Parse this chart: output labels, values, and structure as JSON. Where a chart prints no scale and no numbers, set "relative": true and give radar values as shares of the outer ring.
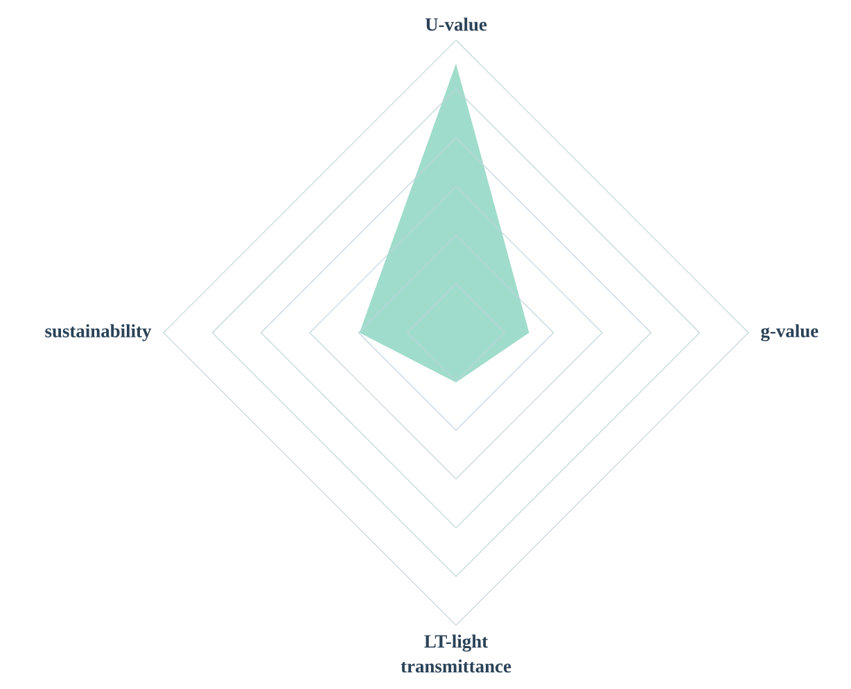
{
  "chart_data": {
    "type": "radar",
    "relative": true,
    "grid": true,
    "categories": [
      "U-value",
      "g-value",
      "LT-light transmittance",
      "sustainability"
    ],
    "series": [
      {
        "color": "#a0dccb",
        "values": [
          0.92,
          0.25,
          0.17,
          0.33
        ]
      }
    ]
  }
}
